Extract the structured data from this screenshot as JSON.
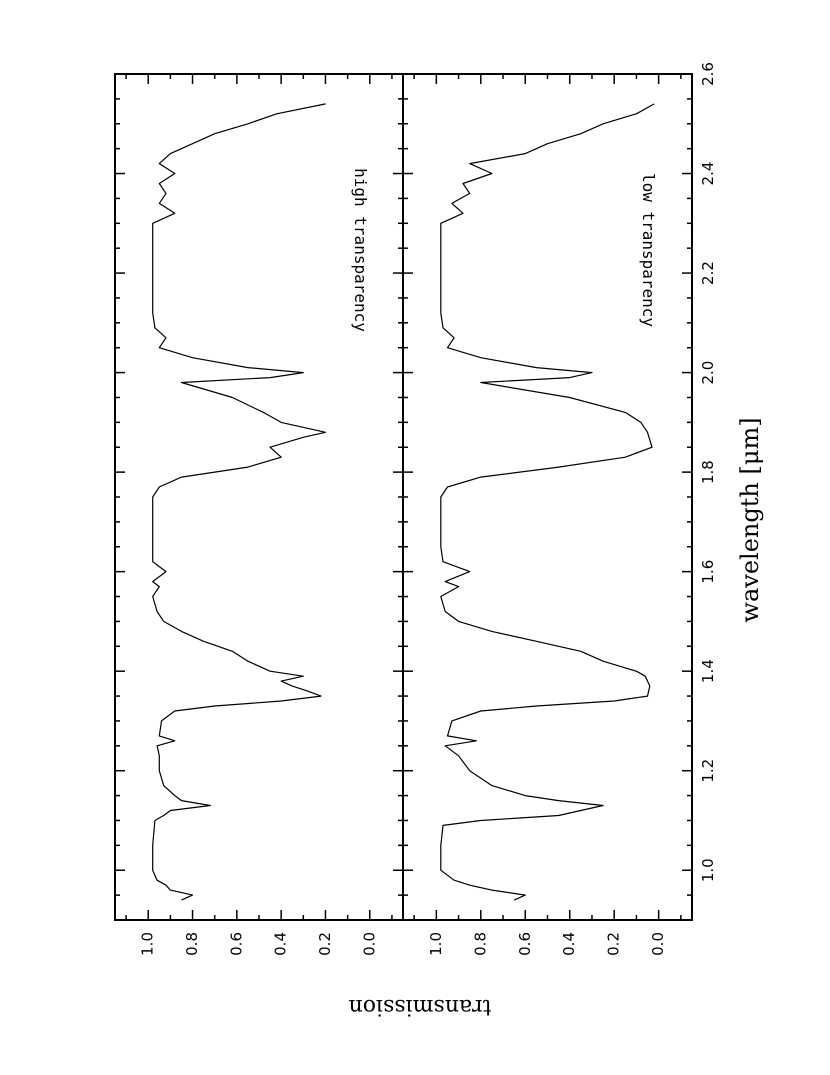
{
  "chart_data": [
    {
      "type": "line",
      "panel": "top",
      "annotation": "high transparency",
      "xlabel": "wavelength [μm]",
      "ylabel": "transmission",
      "xlim": [
        0.9,
        2.6
      ],
      "ylim": [
        -0.15,
        1.15
      ],
      "x_ticks": [
        "1.0",
        "1.2",
        "1.4",
        "1.6",
        "1.8",
        "2.0",
        "2.2",
        "2.4",
        "2.6"
      ],
      "y_ticks": [
        "1.0",
        "0.8",
        "0.6",
        "0.4",
        "0.2",
        "0.0"
      ],
      "series": [
        {
          "x": [
            0.94,
            0.95,
            0.96,
            0.97,
            0.98,
            1.0,
            1.05,
            1.1,
            1.11,
            1.12,
            1.13,
            1.14,
            1.15,
            1.17,
            1.2,
            1.23,
            1.25,
            1.26,
            1.27,
            1.3,
            1.32,
            1.33,
            1.34,
            1.35,
            1.36,
            1.37,
            1.38,
            1.39,
            1.4,
            1.42,
            1.44,
            1.46,
            1.48,
            1.5,
            1.52,
            1.55,
            1.57,
            1.58,
            1.6,
            1.62,
            1.65,
            1.7,
            1.75,
            1.77,
            1.79,
            1.81,
            1.83,
            1.85,
            1.87,
            1.88,
            1.9,
            1.92,
            1.95,
            1.98,
            1.99,
            2.0,
            2.01,
            2.03,
            2.05,
            2.07,
            2.09,
            2.12,
            2.2,
            2.3,
            2.32,
            2.34,
            2.36,
            2.38,
            2.4,
            2.42,
            2.44,
            2.46,
            2.48,
            2.5,
            2.52,
            2.54
          ],
          "y": [
            0.85,
            0.8,
            0.9,
            0.92,
            0.96,
            0.98,
            0.98,
            0.97,
            0.93,
            0.9,
            0.72,
            0.85,
            0.88,
            0.93,
            0.95,
            0.95,
            0.96,
            0.88,
            0.95,
            0.94,
            0.88,
            0.7,
            0.4,
            0.22,
            0.28,
            0.35,
            0.4,
            0.3,
            0.45,
            0.55,
            0.62,
            0.75,
            0.85,
            0.93,
            0.96,
            0.98,
            0.95,
            0.98,
            0.92,
            0.98,
            0.98,
            0.98,
            0.98,
            0.95,
            0.85,
            0.55,
            0.4,
            0.45,
            0.3,
            0.2,
            0.4,
            0.48,
            0.62,
            0.85,
            0.45,
            0.3,
            0.55,
            0.8,
            0.95,
            0.92,
            0.97,
            0.98,
            0.98,
            0.98,
            0.88,
            0.95,
            0.92,
            0.95,
            0.88,
            0.95,
            0.9,
            0.8,
            0.7,
            0.55,
            0.42,
            0.2
          ]
        }
      ]
    },
    {
      "type": "line",
      "panel": "bottom",
      "annotation": "low transparency",
      "xlabel": "wavelength [μm]",
      "ylabel": "transmission",
      "xlim": [
        0.9,
        2.6
      ],
      "ylim": [
        -0.15,
        1.15
      ],
      "x_ticks": [
        "1.0",
        "1.2",
        "1.4",
        "1.6",
        "1.8",
        "2.0",
        "2.2",
        "2.4",
        "2.6"
      ],
      "y_ticks": [
        "1.0",
        "0.8",
        "0.6",
        "0.4",
        "0.2",
        "0.0"
      ],
      "series": [
        {
          "x": [
            0.94,
            0.95,
            0.96,
            0.97,
            0.98,
            1.0,
            1.05,
            1.09,
            1.1,
            1.11,
            1.12,
            1.13,
            1.14,
            1.15,
            1.17,
            1.2,
            1.23,
            1.25,
            1.26,
            1.27,
            1.3,
            1.32,
            1.33,
            1.34,
            1.35,
            1.37,
            1.39,
            1.4,
            1.42,
            1.44,
            1.46,
            1.48,
            1.5,
            1.52,
            1.55,
            1.57,
            1.58,
            1.6,
            1.62,
            1.65,
            1.7,
            1.75,
            1.77,
            1.79,
            1.81,
            1.83,
            1.85,
            1.88,
            1.9,
            1.92,
            1.95,
            1.98,
            1.99,
            2.0,
            2.01,
            2.03,
            2.05,
            2.07,
            2.09,
            2.12,
            2.2,
            2.3,
            2.32,
            2.34,
            2.36,
            2.38,
            2.4,
            2.42,
            2.44,
            2.46,
            2.48,
            2.5,
            2.52,
            2.54
          ],
          "y": [
            0.65,
            0.6,
            0.75,
            0.85,
            0.92,
            0.98,
            0.98,
            0.97,
            0.8,
            0.45,
            0.35,
            0.25,
            0.45,
            0.6,
            0.75,
            0.85,
            0.9,
            0.96,
            0.82,
            0.95,
            0.93,
            0.8,
            0.55,
            0.2,
            0.05,
            0.04,
            0.06,
            0.1,
            0.25,
            0.35,
            0.55,
            0.75,
            0.9,
            0.96,
            0.98,
            0.9,
            0.96,
            0.85,
            0.97,
            0.98,
            0.98,
            0.98,
            0.95,
            0.8,
            0.45,
            0.15,
            0.03,
            0.05,
            0.08,
            0.15,
            0.4,
            0.8,
            0.4,
            0.3,
            0.55,
            0.8,
            0.95,
            0.92,
            0.97,
            0.98,
            0.98,
            0.98,
            0.88,
            0.93,
            0.85,
            0.88,
            0.75,
            0.85,
            0.6,
            0.5,
            0.35,
            0.25,
            0.1,
            0.02
          ]
        }
      ]
    }
  ]
}
